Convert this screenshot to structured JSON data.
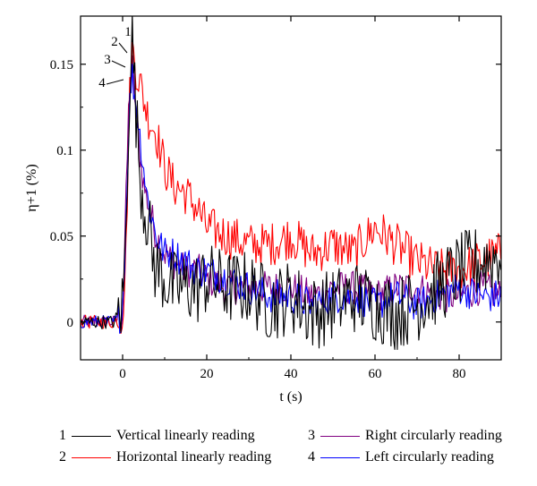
{
  "chart_data": {
    "type": "line",
    "xlabel": "t (s)",
    "ylabel": "η+1 (%)",
    "xlim": [
      -10,
      90
    ],
    "ylim": [
      -0.022,
      0.178
    ],
    "x_ticks": [
      0,
      20,
      40,
      60,
      80
    ],
    "y_ticks": [
      0,
      0.05,
      0.1,
      0.15
    ],
    "x_tick_labels": [
      "0",
      "20",
      "40",
      "60",
      "80"
    ],
    "y_tick_labels": [
      "0",
      "0.05",
      "0.1",
      "0.15"
    ],
    "grid": false,
    "legend_position": "bottom",
    "series": [
      {
        "id": "1",
        "name": "Vertical linearly reading",
        "color": "#000000",
        "x": [
          -10,
          -2,
          0,
          0.8,
          1.5,
          2.2,
          3,
          4,
          5,
          6,
          7,
          8,
          9,
          10,
          12,
          15,
          18,
          20,
          25,
          30,
          35,
          40,
          45,
          50,
          55,
          60,
          65,
          70,
          75,
          80,
          85,
          90
        ],
        "y": [
          0.0,
          0.0,
          0.01,
          0.05,
          0.13,
          0.17,
          0.13,
          0.09,
          0.07,
          0.06,
          0.04,
          0.03,
          0.03,
          0.025,
          0.02,
          0.02,
          0.02,
          0.025,
          0.02,
          0.02,
          0.01,
          0.015,
          0.005,
          0.01,
          0.015,
          0.01,
          0.005,
          0.01,
          0.02,
          0.03,
          0.035,
          0.04
        ]
      },
      {
        "id": "2",
        "name": "Horizontal linearly reading",
        "color": "#ff0000",
        "x": [
          -10,
          -2,
          0,
          0.8,
          1.5,
          2.2,
          3,
          4,
          5,
          6,
          7,
          8,
          9,
          10,
          12,
          15,
          18,
          20,
          25,
          30,
          35,
          40,
          45,
          50,
          55,
          60,
          65,
          70,
          75,
          80,
          85,
          90
        ],
        "y": [
          0.0,
          0.0,
          0.005,
          0.04,
          0.12,
          0.16,
          0.15,
          0.14,
          0.13,
          0.12,
          0.115,
          0.11,
          0.1,
          0.09,
          0.08,
          0.075,
          0.065,
          0.055,
          0.05,
          0.045,
          0.045,
          0.05,
          0.04,
          0.045,
          0.04,
          0.055,
          0.045,
          0.035,
          0.03,
          0.03,
          0.035,
          0.04
        ]
      },
      {
        "id": "3",
        "name": "Right circularly reading",
        "color": "#800080",
        "x": [
          -10,
          -2,
          0,
          0.8,
          1.5,
          2.2,
          3,
          4,
          5,
          6,
          7,
          8,
          9,
          10,
          12,
          15,
          18,
          20,
          25,
          30,
          35,
          40,
          45,
          50,
          55,
          60,
          65,
          70,
          75,
          80,
          85,
          90
        ],
        "y": [
          0.0,
          0.0,
          0.005,
          0.07,
          0.13,
          0.15,
          0.13,
          0.1,
          0.08,
          0.07,
          0.06,
          0.05,
          0.045,
          0.04,
          0.035,
          0.03,
          0.03,
          0.025,
          0.02,
          0.02,
          0.02,
          0.02,
          0.015,
          0.02,
          0.02,
          0.015,
          0.02,
          0.02,
          0.015,
          0.015,
          0.02,
          0.015
        ]
      },
      {
        "id": "4",
        "name": "Left circularly reading",
        "color": "#0000ff",
        "x": [
          -10,
          -2,
          0,
          0.8,
          1.5,
          2.2,
          3,
          4,
          5,
          6,
          7,
          8,
          9,
          10,
          12,
          15,
          18,
          20,
          25,
          30,
          35,
          40,
          45,
          50,
          55,
          60,
          65,
          70,
          75,
          80,
          85,
          90
        ],
        "y": [
          0.0,
          0.0,
          0.005,
          0.06,
          0.12,
          0.145,
          0.13,
          0.11,
          0.09,
          0.07,
          0.06,
          0.05,
          0.045,
          0.04,
          0.04,
          0.035,
          0.03,
          0.03,
          0.025,
          0.02,
          0.015,
          0.015,
          0.01,
          0.015,
          0.015,
          0.01,
          0.015,
          0.01,
          0.015,
          0.02,
          0.015,
          0.015
        ]
      }
    ],
    "annotations": [
      {
        "text": "1",
        "series": "1",
        "x": 2.2,
        "y": 0.17
      },
      {
        "text": "2",
        "series": "2",
        "x": 2.2,
        "y": 0.16
      },
      {
        "text": "3",
        "series": "3",
        "x": 2.2,
        "y": 0.15
      },
      {
        "text": "4",
        "series": "4",
        "x": 2.2,
        "y": 0.145
      }
    ]
  }
}
